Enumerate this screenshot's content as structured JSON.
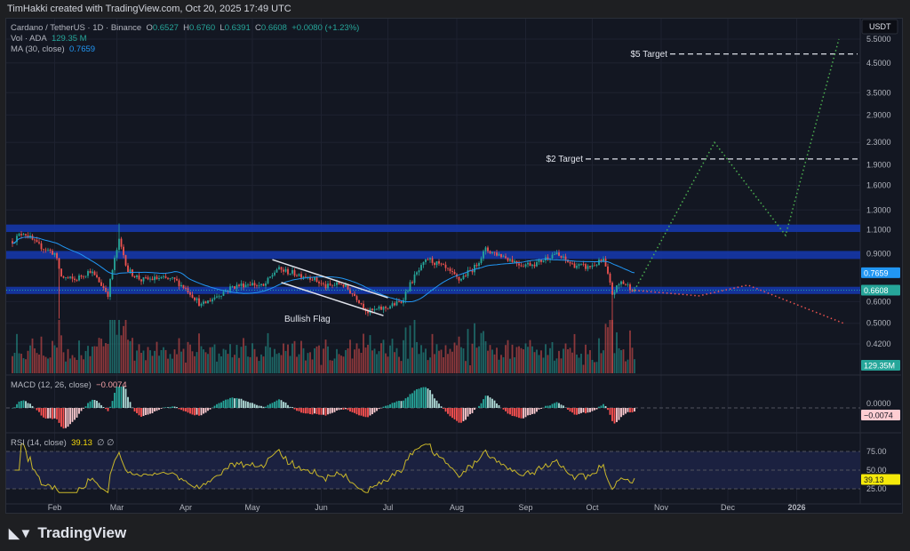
{
  "header": {
    "credit": "TimHakki created with TradingView.com, Oct 20, 2025 17:49 UTC"
  },
  "legend": {
    "symbol": "Cardano / TetherUS · 1D · Binance",
    "o_label": "O",
    "o": "0.6527",
    "h_label": "H",
    "h": "0.6760",
    "l_label": "L",
    "l": "0.6391",
    "c_label": "C",
    "c": "0.6608",
    "change": "+0.0080 (+1.23%)",
    "vol_label": "Vol · ADA",
    "vol": "129.35 M",
    "ma_label": "MA (30, close)",
    "ma": "0.7659",
    "macd_label": "MACD (12, 26, close)",
    "macd": "−0.0074",
    "rsi_label": "RSI (14, close)",
    "rsi": "39.13",
    "rsi_extra": "∅ ∅"
  },
  "footer": {
    "brand": "TradingView"
  },
  "colors": {
    "up": "#26a69a",
    "down": "#ef5350",
    "ma": "#2196f3",
    "band": "#1536a8",
    "rsi": "#c9b72a",
    "bullish_projection": "#4caf50",
    "bearish_projection": "#ef5350",
    "background": "#131722"
  },
  "chart_data": {
    "type": "candlestick",
    "currency": "USDT",
    "y_scale": "log",
    "ylim": [
      0.4,
      5.8
    ],
    "y_ticks": [
      "5.5000",
      "4.5000",
      "3.5000",
      "2.9000",
      "2.3000",
      "1.9000",
      "1.6000",
      "1.3000",
      "1.1000",
      "0.9000",
      "0.6000",
      "0.5000",
      "0.4200"
    ],
    "x_ticks": [
      {
        "label": "Feb",
        "date": "2025-02-01"
      },
      {
        "label": "Mar",
        "date": "2025-03-01"
      },
      {
        "label": "Apr",
        "date": "2025-04-01"
      },
      {
        "label": "May",
        "date": "2025-05-01"
      },
      {
        "label": "Jun",
        "date": "2025-06-01"
      },
      {
        "label": "Jul",
        "date": "2025-07-01"
      },
      {
        "label": "Aug",
        "date": "2025-08-01"
      },
      {
        "label": "Sep",
        "date": "2025-09-01"
      },
      {
        "label": "Oct",
        "date": "2025-10-01"
      },
      {
        "label": "Nov",
        "date": "2025-11-01"
      },
      {
        "label": "Dec",
        "date": "2025-12-01"
      },
      {
        "label": "2026",
        "date": "2026-01-01"
      }
    ],
    "close_series": [
      [
        "2025-01-13",
        1.0
      ],
      [
        "2025-01-18",
        1.08
      ],
      [
        "2025-01-24",
        0.97
      ],
      [
        "2025-02-01",
        0.9
      ],
      [
        "2025-02-04",
        0.74
      ],
      [
        "2025-02-10",
        0.72
      ],
      [
        "2025-02-17",
        0.78
      ],
      [
        "2025-02-25",
        0.64
      ],
      [
        "2025-03-02",
        1.0
      ],
      [
        "2025-03-06",
        0.78
      ],
      [
        "2025-03-12",
        0.72
      ],
      [
        "2025-03-20",
        0.73
      ],
      [
        "2025-03-27",
        0.72
      ],
      [
        "2025-04-02",
        0.66
      ],
      [
        "2025-04-08",
        0.58
      ],
      [
        "2025-04-15",
        0.63
      ],
      [
        "2025-04-22",
        0.68
      ],
      [
        "2025-04-30",
        0.7
      ],
      [
        "2025-05-06",
        0.68
      ],
      [
        "2025-05-12",
        0.79
      ],
      [
        "2025-05-20",
        0.76
      ],
      [
        "2025-05-27",
        0.74
      ],
      [
        "2025-06-03",
        0.68
      ],
      [
        "2025-06-10",
        0.7
      ],
      [
        "2025-06-17",
        0.62
      ],
      [
        "2025-06-22",
        0.55
      ],
      [
        "2025-06-30",
        0.57
      ],
      [
        "2025-07-07",
        0.6
      ],
      [
        "2025-07-13",
        0.74
      ],
      [
        "2025-07-19",
        0.86
      ],
      [
        "2025-07-26",
        0.8
      ],
      [
        "2025-08-02",
        0.72
      ],
      [
        "2025-08-09",
        0.8
      ],
      [
        "2025-08-14",
        0.93
      ],
      [
        "2025-08-22",
        0.88
      ],
      [
        "2025-08-30",
        0.82
      ],
      [
        "2025-09-06",
        0.83
      ],
      [
        "2025-09-14",
        0.9
      ],
      [
        "2025-09-22",
        0.82
      ],
      [
        "2025-09-29",
        0.8
      ],
      [
        "2025-10-06",
        0.85
      ],
      [
        "2025-10-10",
        0.64
      ],
      [
        "2025-10-14",
        0.71
      ],
      [
        "2025-10-20",
        0.6608
      ]
    ],
    "last_close": 0.6608,
    "last_ma": 0.7659,
    "last_volume": "129.35M",
    "zones": [
      {
        "low": 1.08,
        "high": 1.15
      },
      {
        "low": 0.86,
        "high": 0.92
      },
      {
        "low": 0.64,
        "high": 0.68
      }
    ],
    "targets": [
      {
        "label": "$2 Target",
        "price": 2.0,
        "from": "2025-09-28"
      },
      {
        "label": "$5 Target",
        "price": 4.85,
        "from": "2025-11-05"
      }
    ],
    "pattern": {
      "label": "Bullish Flag",
      "upper": [
        [
          "2025-05-10",
          0.855
        ],
        [
          "2025-07-01",
          0.62
        ]
      ],
      "lower": [
        [
          "2025-05-14",
          0.705
        ],
        [
          "2025-06-29",
          0.533
        ]
      ]
    },
    "projection_bullish": [
      [
        "2025-10-20",
        0.66
      ],
      [
        "2025-11-25",
        2.3
      ],
      [
        "2025-12-27",
        1.05
      ],
      [
        "2026-01-20",
        5.5
      ]
    ],
    "projection_bearish": [
      [
        "2025-10-20",
        0.66
      ],
      [
        "2025-11-18",
        0.63
      ],
      [
        "2025-12-10",
        0.69
      ],
      [
        "2026-01-22",
        0.5
      ]
    ],
    "macd_ticks": [
      "0.0000"
    ],
    "macd_last": -0.0074,
    "rsi_ticks": [
      "75.00",
      "50.00",
      "25.00"
    ],
    "rsi_last": 39.13
  }
}
